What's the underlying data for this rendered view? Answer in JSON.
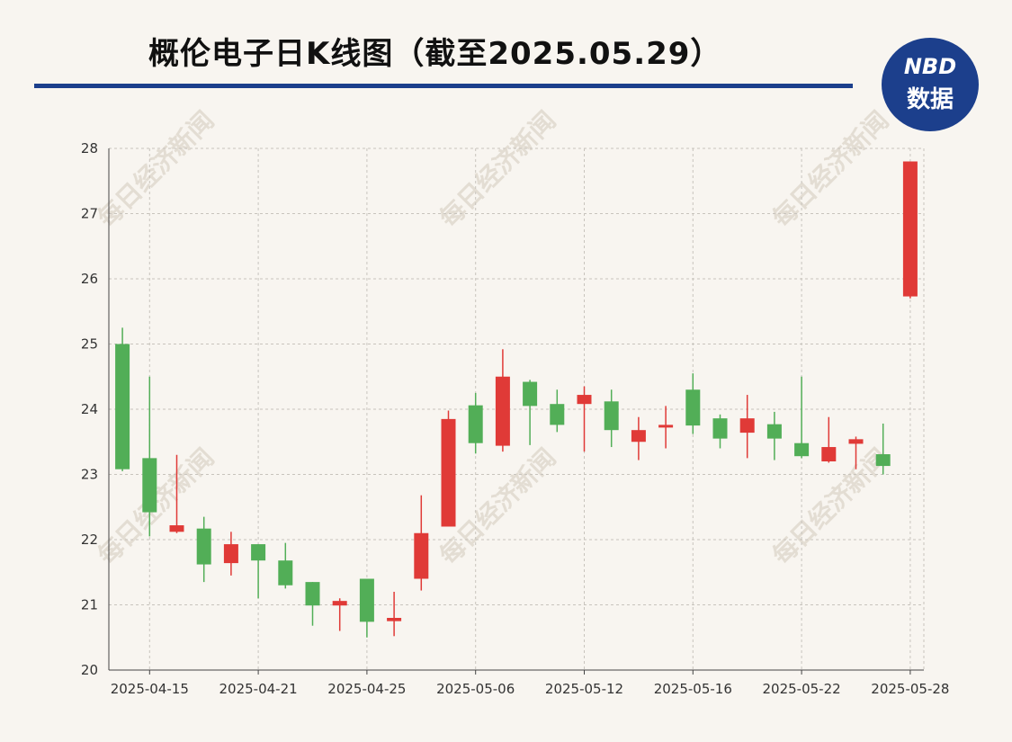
{
  "title": "概伦电子日K线图（截至2025.05.29）",
  "logo": {
    "line1": "NBD",
    "line2": "数据"
  },
  "watermark": "每日经济新闻",
  "colors": {
    "up": "#e03a37",
    "down": "#52ae57",
    "accent": "#1c3f8c",
    "grid": "#c8c4bd"
  },
  "chart_data": {
    "type": "candlestick",
    "title": "概伦电子日K线图（截至2025.05.29）",
    "ylim": [
      20,
      28
    ],
    "yticks": [
      20,
      21,
      22,
      23,
      24,
      25,
      26,
      27,
      28
    ],
    "grid": true,
    "xtick_labels": [
      "2025-04-15",
      "2025-04-21",
      "2025-04-25",
      "2025-05-06",
      "2025-05-12",
      "2025-05-16",
      "2025-05-22",
      "2025-05-28"
    ],
    "candles": [
      {
        "date": "2025-04-14",
        "open": 25.0,
        "close": 23.08,
        "high": 25.25,
        "low": 23.05
      },
      {
        "date": "2025-04-15",
        "open": 23.25,
        "close": 22.42,
        "high": 24.5,
        "low": 22.05
      },
      {
        "date": "2025-04-16",
        "open": 22.12,
        "close": 22.22,
        "high": 23.3,
        "low": 22.1
      },
      {
        "date": "2025-04-17",
        "open": 22.17,
        "close": 21.62,
        "high": 22.35,
        "low": 21.35
      },
      {
        "date": "2025-04-18",
        "open": 21.64,
        "close": 21.93,
        "high": 22.12,
        "low": 21.45
      },
      {
        "date": "2025-04-21",
        "open": 21.93,
        "close": 21.68,
        "high": 21.93,
        "low": 21.1
      },
      {
        "date": "2025-04-22",
        "open": 21.68,
        "close": 21.3,
        "high": 21.95,
        "low": 21.25
      },
      {
        "date": "2025-04-23",
        "open": 21.35,
        "close": 20.99,
        "high": 21.35,
        "low": 20.68
      },
      {
        "date": "2025-04-24",
        "open": 20.99,
        "close": 21.06,
        "high": 21.1,
        "low": 20.6
      },
      {
        "date": "2025-04-25",
        "open": 21.4,
        "close": 20.74,
        "high": 21.4,
        "low": 20.5
      },
      {
        "date": "2025-04-28",
        "open": 20.75,
        "close": 20.8,
        "high": 21.2,
        "low": 20.52
      },
      {
        "date": "2025-04-29",
        "open": 21.4,
        "close": 22.1,
        "high": 22.68,
        "low": 21.22
      },
      {
        "date": "2025-04-30",
        "open": 22.2,
        "close": 23.85,
        "high": 23.98,
        "low": 22.2
      },
      {
        "date": "2025-05-06",
        "open": 24.06,
        "close": 23.48,
        "high": 24.25,
        "low": 23.32
      },
      {
        "date": "2025-05-07",
        "open": 23.44,
        "close": 24.5,
        "high": 24.92,
        "low": 23.35
      },
      {
        "date": "2025-05-08",
        "open": 24.42,
        "close": 24.05,
        "high": 24.45,
        "low": 23.45
      },
      {
        "date": "2025-05-09",
        "open": 24.08,
        "close": 23.76,
        "high": 24.3,
        "low": 23.65
      },
      {
        "date": "2025-05-12",
        "open": 24.08,
        "close": 24.22,
        "high": 24.35,
        "low": 23.35
      },
      {
        "date": "2025-05-13",
        "open": 24.12,
        "close": 23.68,
        "high": 24.3,
        "low": 23.42
      },
      {
        "date": "2025-05-14",
        "open": 23.5,
        "close": 23.68,
        "high": 23.88,
        "low": 23.22
      },
      {
        "date": "2025-05-15",
        "open": 23.72,
        "close": 23.76,
        "high": 24.05,
        "low": 23.4
      },
      {
        "date": "2025-05-16",
        "open": 24.3,
        "close": 23.75,
        "high": 24.55,
        "low": 23.62
      },
      {
        "date": "2025-05-19",
        "open": 23.86,
        "close": 23.55,
        "high": 23.92,
        "low": 23.4
      },
      {
        "date": "2025-05-20",
        "open": 23.64,
        "close": 23.86,
        "high": 24.22,
        "low": 23.25
      },
      {
        "date": "2025-05-21",
        "open": 23.77,
        "close": 23.55,
        "high": 23.96,
        "low": 23.22
      },
      {
        "date": "2025-05-22",
        "open": 23.48,
        "close": 23.28,
        "high": 24.5,
        "low": 23.25
      },
      {
        "date": "2025-05-23",
        "open": 23.2,
        "close": 23.42,
        "high": 23.88,
        "low": 23.18
      },
      {
        "date": "2025-05-26",
        "open": 23.47,
        "close": 23.54,
        "high": 23.58,
        "low": 23.08
      },
      {
        "date": "2025-05-27",
        "open": 23.31,
        "close": 23.13,
        "high": 23.78,
        "low": 23.0
      },
      {
        "date": "2025-05-28",
        "open": 25.73,
        "close": 27.8,
        "high": 27.8,
        "low": 25.7
      }
    ]
  }
}
